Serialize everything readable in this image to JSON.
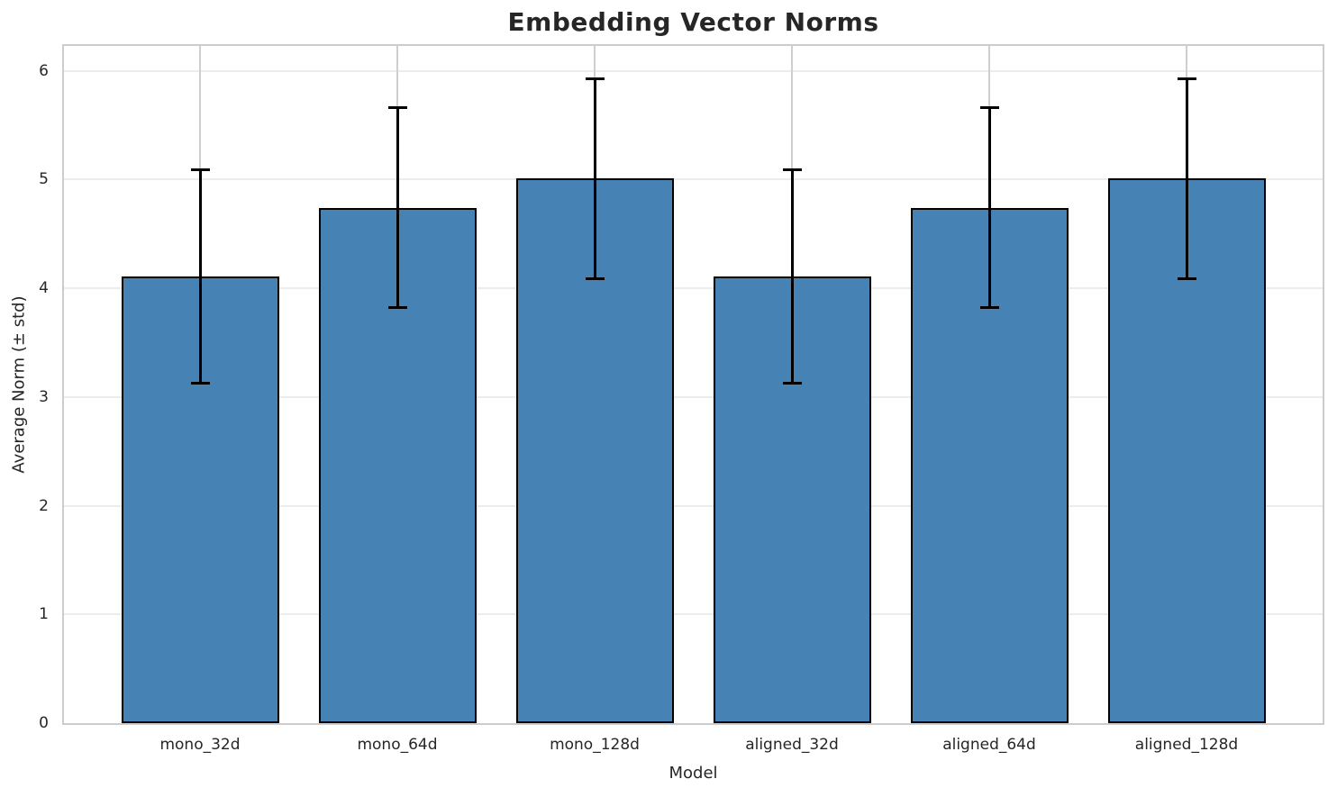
{
  "chart_data": {
    "type": "bar",
    "title": "Embedding Vector Norms",
    "xlabel": "Model",
    "ylabel": "Average Norm (± std)",
    "categories": [
      "mono_32d",
      "mono_64d",
      "mono_128d",
      "aligned_32d",
      "aligned_64d",
      "aligned_128d"
    ],
    "values": [
      4.11,
      4.74,
      5.01,
      4.11,
      4.74,
      5.01
    ],
    "errors": [
      0.98,
      0.92,
      0.92,
      0.98,
      0.92,
      0.92
    ],
    "yticks": [
      0,
      1,
      2,
      3,
      4,
      5,
      6
    ],
    "ylim": [
      0,
      6.23
    ],
    "grid": true,
    "legend": "none",
    "bar_color": "#4682b4",
    "bar_edge_color": "#000000",
    "error_bar_color": "#000000",
    "grid_color_horizontal": "#ececec",
    "grid_color_vertical": "#cfcfcf",
    "spine_color": "#cccccc",
    "text_color": "#262626",
    "background_color": "#ffffff"
  }
}
